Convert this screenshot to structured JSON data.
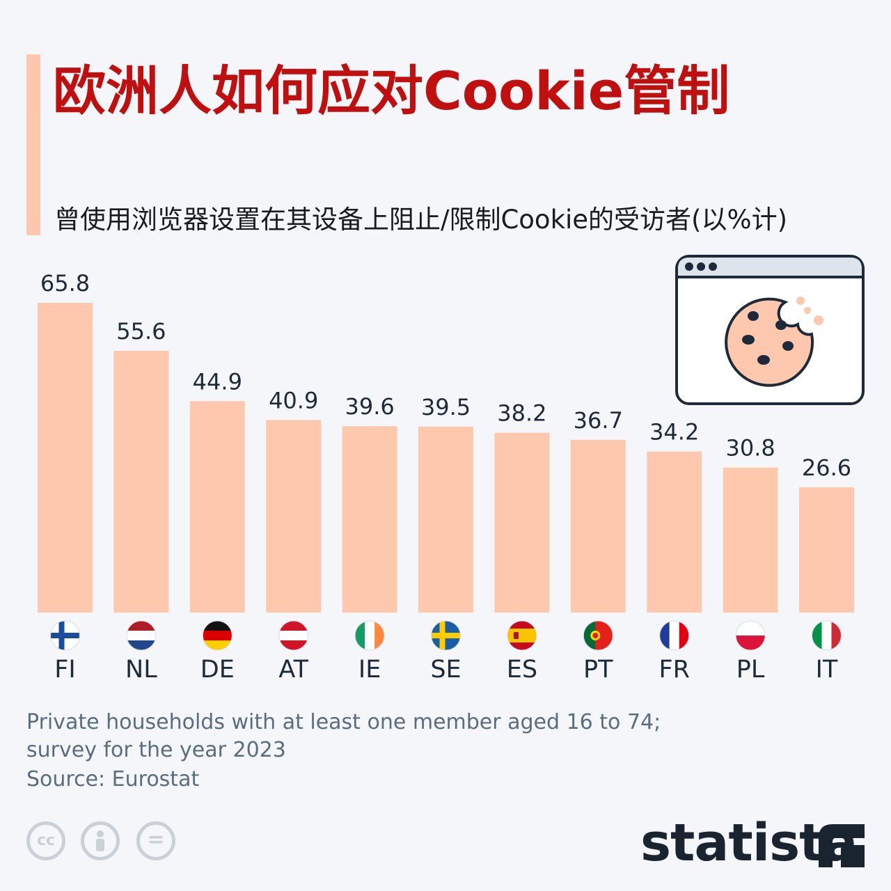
{
  "title": "欧洲人如何应对Cookie管制",
  "subtitle": "曾使用浏览器设置在其设备上阻止/限制Cookie的受访者(以%计)",
  "footnote": "Private households with at least one member aged 16 to 74; survey for the year 2023",
  "source": "Source: Eurostat",
  "brand": "statista",
  "colors": {
    "bar": "#fdc8ad",
    "title": "#c00f0f",
    "accent": "#fdc8ad"
  },
  "icons": [
    "browser-window-cookie-icon",
    "cc-icon",
    "by-icon",
    "nd-icon",
    "statista-logo"
  ],
  "license_icons": {
    "cc": "cc",
    "nd": "="
  },
  "chart_data": {
    "type": "bar",
    "categories": [
      "FI",
      "NL",
      "DE",
      "AT",
      "IE",
      "SE",
      "ES",
      "PT",
      "FR",
      "PL",
      "IT"
    ],
    "values": [
      65.8,
      55.6,
      44.9,
      40.9,
      39.6,
      39.5,
      38.2,
      36.7,
      34.2,
      30.8,
      26.6
    ],
    "title": "欧洲人如何应对Cookie管制",
    "xlabel": "",
    "ylabel": "",
    "ylim": [
      0,
      65.8
    ],
    "grid": false,
    "legend": "none",
    "data_labels": true,
    "flags": [
      "finland-flag-icon",
      "netherlands-flag-icon",
      "germany-flag-icon",
      "austria-flag-icon",
      "ireland-flag-icon",
      "sweden-flag-icon",
      "spain-flag-icon",
      "portugal-flag-icon",
      "france-flag-icon",
      "poland-flag-icon",
      "italy-flag-icon"
    ]
  }
}
